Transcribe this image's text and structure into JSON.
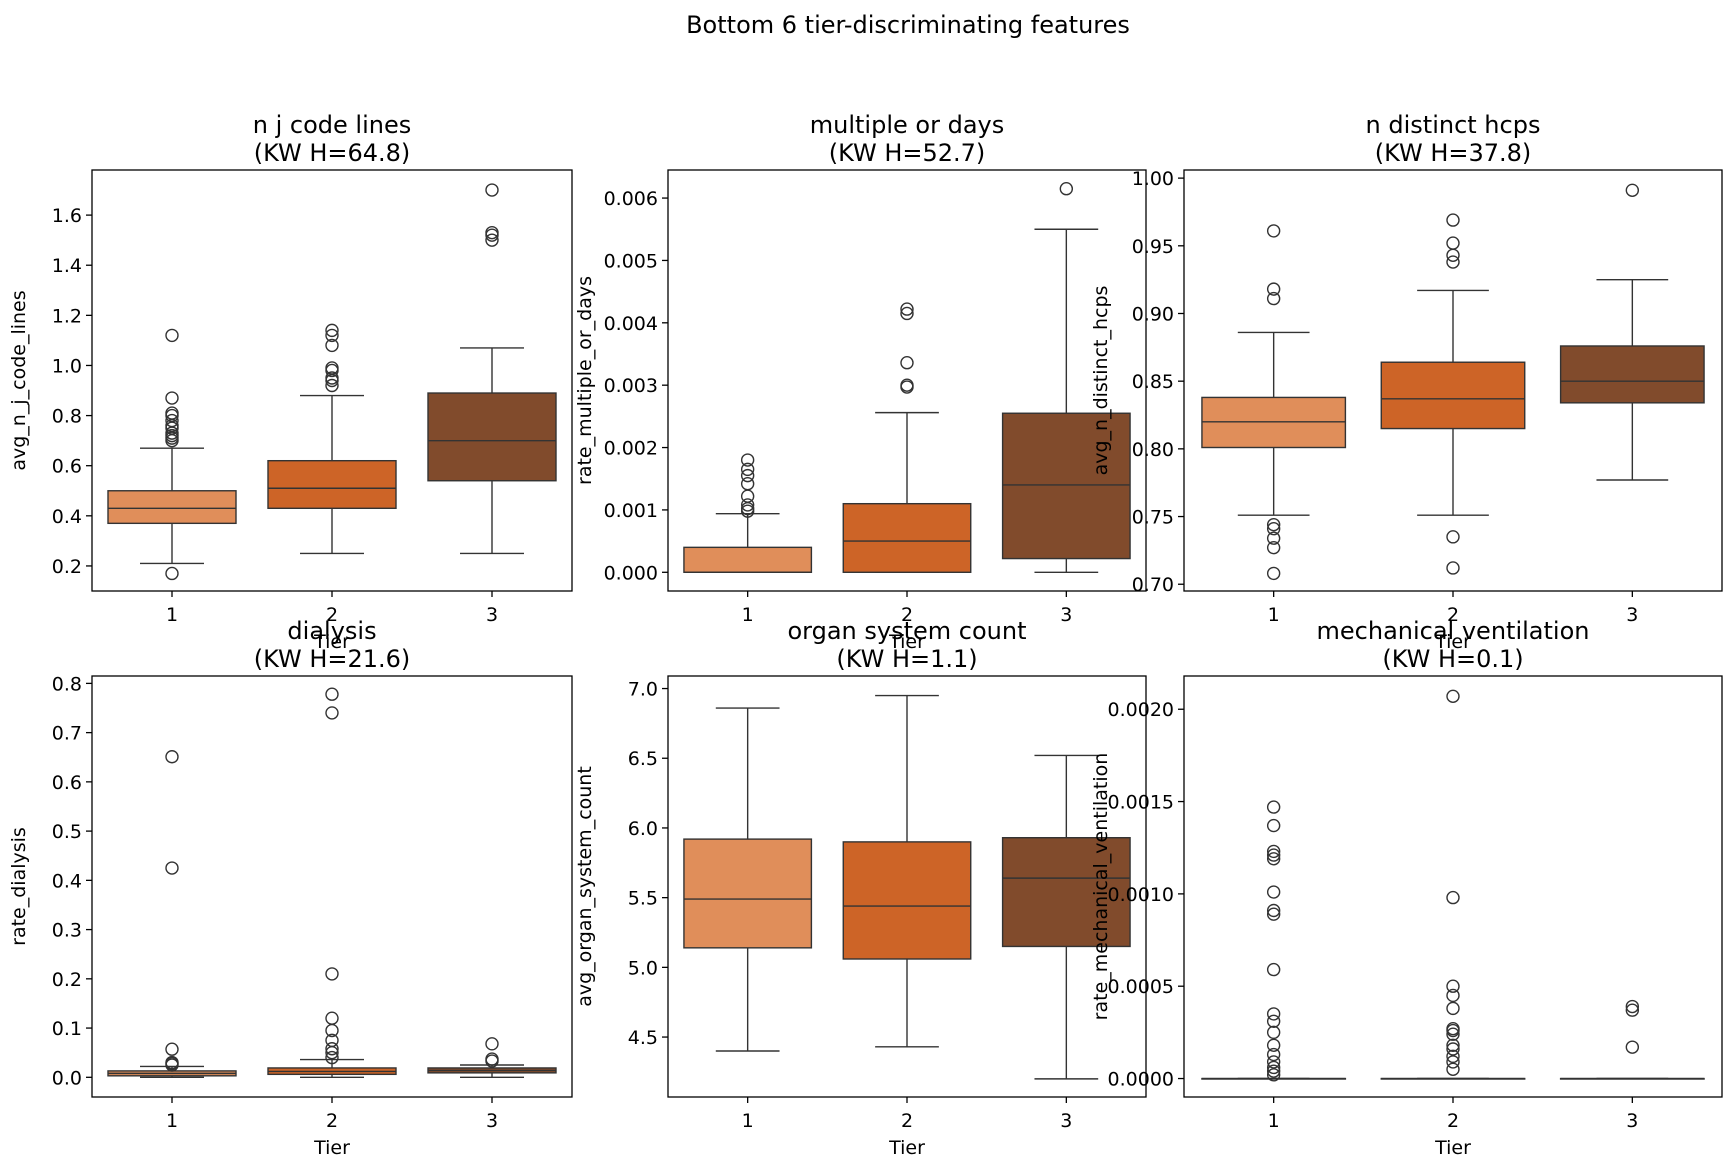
{
  "suptitle": "Bottom 6 tier-discriminating features",
  "colors": {
    "tier1": "#e08e5a",
    "tier2": "#cd6427",
    "tier3": "#814b2c",
    "line": "#333333",
    "frame": "#000000"
  },
  "chart_data": [
    {
      "type": "box",
      "title_line1": "n j code lines",
      "title_line2": "(KW H=64.8)",
      "xlabel": "Tier",
      "ylabel": "avg_n_j_code_lines",
      "categories": [
        "1",
        "2",
        "3"
      ],
      "ylim": [
        0.1,
        1.78
      ],
      "yticks": [
        0.2,
        0.4,
        0.6,
        0.8,
        1.0,
        1.2,
        1.4,
        1.6
      ],
      "ytick_labels": [
        "0.2",
        "0.4",
        "0.6",
        "0.8",
        "1.0",
        "1.2",
        "1.4",
        "1.6"
      ],
      "boxes": [
        {
          "tier": "1",
          "whislo": 0.21,
          "q1": 0.37,
          "med": 0.43,
          "q3": 0.5,
          "whishi": 0.67,
          "fliers": [
            0.17,
            0.7,
            0.71,
            0.72,
            0.73,
            0.75,
            0.76,
            0.78,
            0.8,
            0.81,
            0.87,
            1.12
          ]
        },
        {
          "tier": "2",
          "whislo": 0.25,
          "q1": 0.43,
          "med": 0.51,
          "q3": 0.62,
          "whishi": 0.88,
          "fliers": [
            0.92,
            0.94,
            0.95,
            0.98,
            0.99,
            1.08,
            1.12,
            1.14
          ]
        },
        {
          "tier": "3",
          "whislo": 0.25,
          "q1": 0.54,
          "med": 0.7,
          "q3": 0.89,
          "whishi": 1.07,
          "fliers": [
            1.5,
            1.52,
            1.53,
            1.7
          ]
        }
      ]
    },
    {
      "type": "box",
      "title_line1": "multiple or days",
      "title_line2": "(KW H=52.7)",
      "xlabel": "Tier",
      "ylabel": "rate_multiple_or_days",
      "categories": [
        "1",
        "2",
        "3"
      ],
      "ylim": [
        -0.0003,
        0.00645
      ],
      "yticks": [
        0,
        0.001,
        0.002,
        0.003,
        0.004,
        0.005,
        0.006
      ],
      "ytick_labels": [
        "0.000",
        "0.001",
        "0.002",
        "0.003",
        "0.004",
        "0.005",
        "0.006"
      ],
      "boxes": [
        {
          "tier": "1",
          "whislo": 0.0,
          "q1": 0.0,
          "med": 0.0,
          "q3": 0.0004,
          "whishi": 0.00094,
          "fliers": [
            0.00098,
            0.00102,
            0.00108,
            0.00122,
            0.00142,
            0.00155,
            0.00165,
            0.0018
          ]
        },
        {
          "tier": "2",
          "whislo": 0.0,
          "q1": 0.0,
          "med": 0.0005,
          "q3": 0.0011,
          "whishi": 0.00256,
          "fliers": [
            0.00297,
            0.003,
            0.00336,
            0.00415,
            0.00422
          ]
        },
        {
          "tier": "3",
          "whislo": 0.0,
          "q1": 0.00022,
          "med": 0.0014,
          "q3": 0.00255,
          "whishi": 0.0055,
          "fliers": [
            0.00615
          ]
        }
      ]
    },
    {
      "type": "box",
      "title_line1": "n distinct hcps",
      "title_line2": "(KW H=37.8)",
      "xlabel": "Tier",
      "ylabel": "avg_n_distinct_hcps",
      "categories": [
        "1",
        "2",
        "3"
      ],
      "ylim": [
        0.695,
        1.006
      ],
      "yticks": [
        0.7,
        0.75,
        0.8,
        0.85,
        0.9,
        0.95,
        1.0
      ],
      "ytick_labels": [
        "0.70",
        "0.75",
        "0.80",
        "0.85",
        "0.90",
        "0.95",
        "1.00"
      ],
      "boxes": [
        {
          "tier": "1",
          "whislo": 0.751,
          "q1": 0.801,
          "med": 0.82,
          "q3": 0.838,
          "whishi": 0.886,
          "fliers": [
            0.708,
            0.727,
            0.734,
            0.741,
            0.744,
            0.911,
            0.918,
            0.961
          ]
        },
        {
          "tier": "2",
          "whislo": 0.751,
          "q1": 0.815,
          "med": 0.837,
          "q3": 0.864,
          "whishi": 0.917,
          "fliers": [
            0.712,
            0.735,
            0.938,
            0.943,
            0.952,
            0.969
          ]
        },
        {
          "tier": "3",
          "whislo": 0.777,
          "q1": 0.834,
          "med": 0.85,
          "q3": 0.876,
          "whishi": 0.925,
          "fliers": [
            0.991
          ]
        }
      ]
    },
    {
      "type": "box",
      "title_line1": "dialysis",
      "title_line2": "(KW H=21.6)",
      "xlabel": "Tier",
      "ylabel": "rate_dialysis",
      "categories": [
        "1",
        "2",
        "3"
      ],
      "ylim": [
        -0.04,
        0.815
      ],
      "yticks": [
        0.0,
        0.1,
        0.2,
        0.3,
        0.4,
        0.5,
        0.6,
        0.7,
        0.8
      ],
      "ytick_labels": [
        "0.0",
        "0.1",
        "0.2",
        "0.3",
        "0.4",
        "0.5",
        "0.6",
        "0.7",
        "0.8"
      ],
      "boxes": [
        {
          "tier": "1",
          "whislo": 0.0,
          "q1": 0.003,
          "med": 0.008,
          "q3": 0.013,
          "whishi": 0.022,
          "fliers": [
            0.025,
            0.028,
            0.03,
            0.057,
            0.425,
            0.651
          ]
        },
        {
          "tier": "2",
          "whislo": 0.0,
          "q1": 0.006,
          "med": 0.012,
          "q3": 0.019,
          "whishi": 0.036,
          "fliers": [
            0.04,
            0.05,
            0.058,
            0.075,
            0.095,
            0.12,
            0.21,
            0.74,
            0.778
          ]
        },
        {
          "tier": "3",
          "whislo": 0.0,
          "q1": 0.009,
          "med": 0.014,
          "q3": 0.019,
          "whishi": 0.025,
          "fliers": [
            0.033,
            0.037,
            0.068
          ]
        }
      ]
    },
    {
      "type": "box",
      "title_line1": "organ system count",
      "title_line2": "(KW H=1.1)",
      "xlabel": "Tier",
      "ylabel": "avg_organ_system_count",
      "categories": [
        "1",
        "2",
        "3"
      ],
      "ylim": [
        4.07,
        7.09
      ],
      "yticks": [
        4.5,
        5.0,
        5.5,
        6.0,
        6.5,
        7.0
      ],
      "ytick_labels": [
        "4.5",
        "5.0",
        "5.5",
        "6.0",
        "6.5",
        "7.0"
      ],
      "boxes": [
        {
          "tier": "1",
          "whislo": 4.4,
          "q1": 5.14,
          "med": 5.49,
          "q3": 5.92,
          "whishi": 6.86,
          "fliers": []
        },
        {
          "tier": "2",
          "whislo": 4.43,
          "q1": 5.06,
          "med": 5.44,
          "q3": 5.9,
          "whishi": 6.95,
          "fliers": []
        },
        {
          "tier": "3",
          "whislo": 4.2,
          "q1": 5.15,
          "med": 5.64,
          "q3": 5.93,
          "whishi": 6.52,
          "fliers": []
        }
      ]
    },
    {
      "type": "box",
      "title_line1": "mechanical ventilation",
      "title_line2": "(KW H=0.1)",
      "xlabel": "Tier",
      "ylabel": "rate_mechanical_ventilation",
      "categories": [
        "1",
        "2",
        "3"
      ],
      "ylim": [
        -0.0001,
        0.00218
      ],
      "yticks": [
        0.0,
        0.0005,
        0.001,
        0.0015,
        0.002
      ],
      "ytick_labels": [
        "0.0000",
        "0.0005",
        "0.0010",
        "0.0015",
        "0.0020"
      ],
      "boxes": [
        {
          "tier": "1",
          "whislo": 0.0,
          "q1": 0.0,
          "med": 0.0,
          "q3": 0.0,
          "whishi": 0.0,
          "fliers": [
            2e-05,
            4e-05,
            6e-05,
            9e-05,
            0.00013,
            0.00018,
            0.00025,
            0.00031,
            0.00035,
            0.00059,
            0.00089,
            0.00091,
            0.00101,
            0.00119,
            0.00121,
            0.00123,
            0.00137,
            0.00147
          ]
        },
        {
          "tier": "2",
          "whislo": 0.0,
          "q1": 0.0,
          "med": 0.0,
          "q3": 0.0,
          "whishi": 0.0,
          "fliers": [
            5e-05,
            9e-05,
            0.00012,
            0.00016,
            0.00018,
            0.00024,
            0.00026,
            0.00027,
            0.00038,
            0.00045,
            0.0005,
            0.00098,
            0.00207
          ]
        },
        {
          "tier": "3",
          "whislo": 0.0,
          "q1": 0.0,
          "med": 0.0,
          "q3": 0.0,
          "whishi": 0.0,
          "fliers": [
            0.00017,
            0.00037,
            0.00039
          ]
        }
      ]
    }
  ]
}
